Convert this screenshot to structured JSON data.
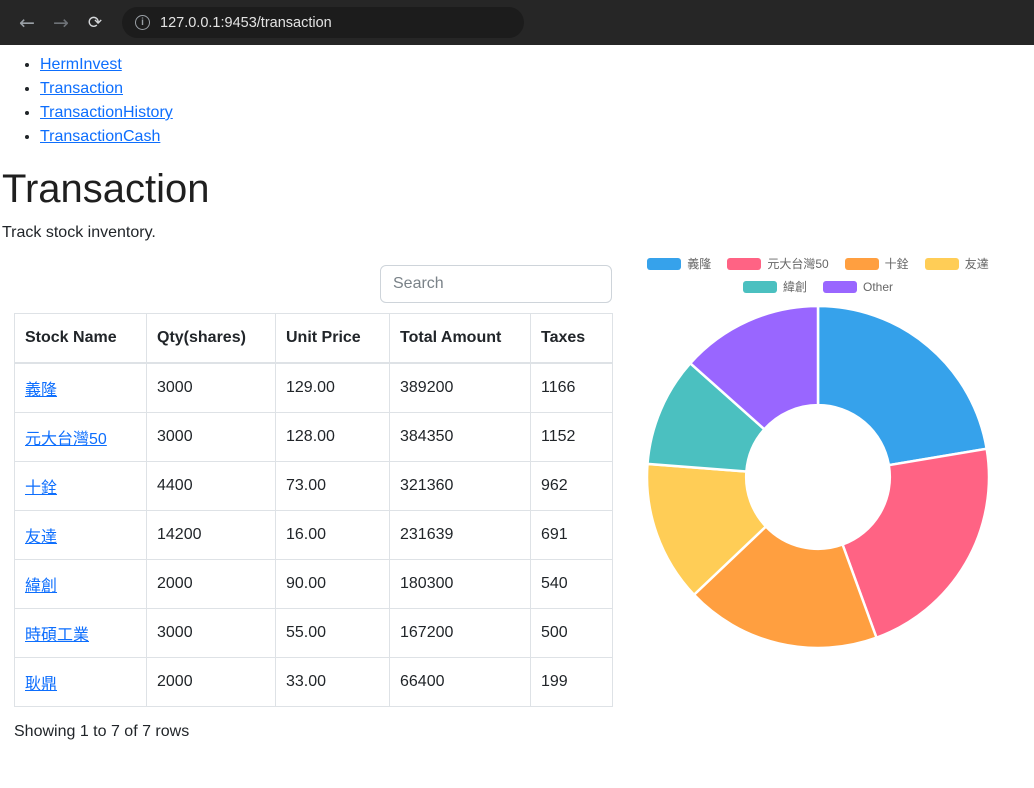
{
  "browser": {
    "url": "127.0.0.1:9453/transaction",
    "icons": {
      "back": "←",
      "forward": "→",
      "reload": "⟳",
      "info": "i"
    }
  },
  "nav": {
    "items": [
      {
        "label": "HermInvest"
      },
      {
        "label": "Transaction"
      },
      {
        "label": "TransactionHistory"
      },
      {
        "label": "TransactionCash"
      }
    ]
  },
  "page": {
    "title": "Transaction",
    "subtitle": "Track stock inventory.",
    "search_placeholder": "Search",
    "footer_status": "Showing 1 to 7 of 7 rows"
  },
  "table": {
    "headers": [
      "Stock Name",
      "Qty(shares)",
      "Unit Price",
      "Total Amount",
      "Taxes"
    ],
    "rows": [
      {
        "stock": "義隆",
        "qty": "3000",
        "unit_price": "129.00",
        "total_amount": "389200",
        "taxes": "1166"
      },
      {
        "stock": "元大台灣50",
        "qty": "3000",
        "unit_price": "128.00",
        "total_amount": "384350",
        "taxes": "1152"
      },
      {
        "stock": "十銓",
        "qty": "4400",
        "unit_price": "73.00",
        "total_amount": "321360",
        "taxes": "962"
      },
      {
        "stock": "友達",
        "qty": "14200",
        "unit_price": "16.00",
        "total_amount": "231639",
        "taxes": "691"
      },
      {
        "stock": "緯創",
        "qty": "2000",
        "unit_price": "90.00",
        "total_amount": "180300",
        "taxes": "540"
      },
      {
        "stock": "時碩工業",
        "qty": "3000",
        "unit_price": "55.00",
        "total_amount": "167200",
        "taxes": "500"
      },
      {
        "stock": "耿鼎",
        "qty": "2000",
        "unit_price": "33.00",
        "total_amount": "66400",
        "taxes": "199"
      }
    ]
  },
  "chart_data": {
    "type": "pie",
    "subtype": "doughnut",
    "title": "",
    "labels": [
      "義隆",
      "元大台灣50",
      "十銓",
      "友達",
      "緯創",
      "Other"
    ],
    "values": [
      389200,
      384350,
      321360,
      231639,
      180300,
      233600
    ],
    "colors": [
      "#36A2EB",
      "#FF6384",
      "#FF9F40",
      "#FFCD56",
      "#4BC0C0",
      "#9966FF"
    ],
    "legend_position": "top",
    "cutout_ratio": 0.42,
    "start_angle_deg": -90
  },
  "colors": {
    "link": "#0d6efd",
    "browser_bar_bg": "#262626",
    "table_border": "#dee2e6"
  }
}
